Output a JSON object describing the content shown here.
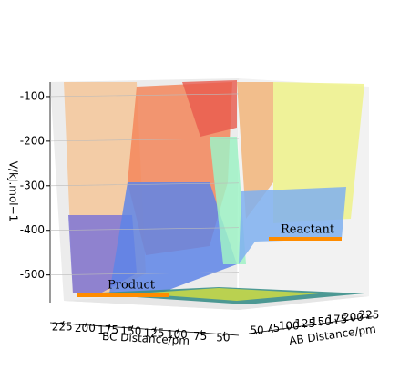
{
  "chart_data": {
    "type": "surface3d",
    "zlabel": "V/kJ.mol−1",
    "xlabel": "BC Distance/pm",
    "ylabel": "AB Distance/pm",
    "xlim": [
      240,
      35
    ],
    "xticks": [
      225,
      200,
      175,
      150,
      125,
      100,
      75,
      50
    ],
    "ylim": [
      40,
      235
    ],
    "yticks": [
      50,
      75,
      100,
      125,
      150,
      175,
      200,
      225
    ],
    "zlim": [
      -560,
      -85
    ],
    "zticks": [
      -100,
      -200,
      -300,
      -400,
      -500
    ],
    "annotations": [
      "Reactant",
      "Product"
    ]
  }
}
